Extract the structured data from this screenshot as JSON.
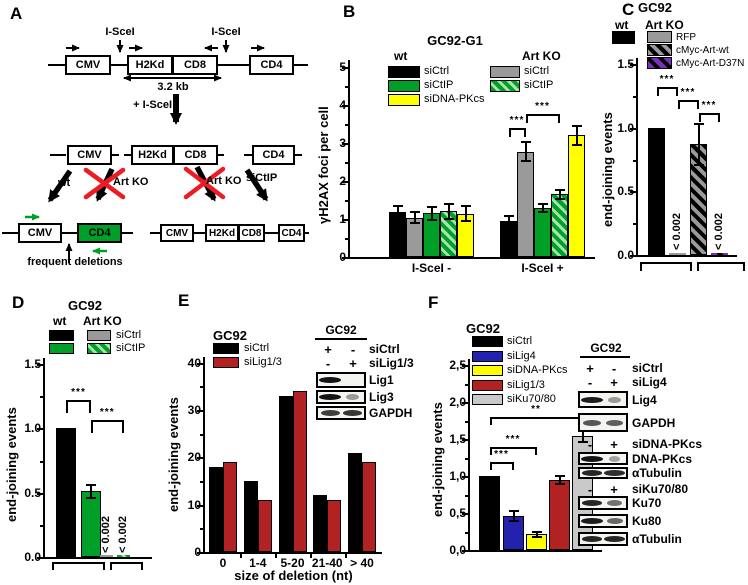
{
  "colors": {
    "black": "#000000",
    "gray": "#9A9A9A",
    "light_gray": "#C9C9C9",
    "green": "#00A028",
    "green_stripe": "#A6E4AE",
    "yellow": "#FFFF00",
    "red": "#B22222",
    "blue": "#2222AE",
    "purple": "#7B2FBE",
    "red_x": "#ED1C24"
  },
  "panels": {
    "a_label": "A",
    "b_label": "B",
    "c_label": "C",
    "d_label": "D",
    "e_label": "E",
    "f_label": "F"
  },
  "panel_a": {
    "isce_site_left": "I-SceI",
    "isce_site_right": "I-SceI",
    "row1_boxes": [
      "CMV",
      "H2Kd",
      "CD8",
      "CD4"
    ],
    "span_label": "3.2 kb",
    "cut_label": "+ I-SceI",
    "row2_boxes": [
      "CMV",
      "H2Kd",
      "CD8",
      "CD4"
    ],
    "wt_label": "wt",
    "artko_left_label": "Art KO",
    "artko_right_label": "Art KO",
    "sictip_label": "siCtIP",
    "left_product_boxes": [
      "CMV",
      "CD4"
    ],
    "right_product_boxes": [
      "CMV",
      "H2Kd",
      "CD8",
      "CD4"
    ],
    "deletions_label": "frequent deletions"
  },
  "chart_data": [
    {
      "id": "panel_b",
      "type": "bar",
      "title": "GC92-G1",
      "ylabel": "γH2AX foci per cell",
      "ylim": [
        0,
        5
      ],
      "yticks": [
        "0",
        "1",
        "2",
        "3",
        "4",
        "5"
      ],
      "categories": [
        "I-SceI -",
        "I-SceI +"
      ],
      "series": [
        {
          "name": "wt siCtrl",
          "fill": "black",
          "values": [
            1.18,
            0.95
          ],
          "errors": [
            0.2,
            0.15
          ]
        },
        {
          "name": "Art KO siCtrl",
          "fill": "gray",
          "values": [
            1.03,
            2.77
          ],
          "errors": [
            0.17,
            0.28
          ]
        },
        {
          "name": "wt siCtIP",
          "fill": "green",
          "values": [
            1.15,
            1.3
          ],
          "errors": [
            0.2,
            0.13
          ]
        },
        {
          "name": "Art KO siCtIP",
          "fill": "green-hatch",
          "values": [
            1.2,
            1.65
          ],
          "errors": [
            0.22,
            0.15
          ]
        },
        {
          "name": "wt siDNA-PKcs",
          "fill": "yellow",
          "values": [
            1.14,
            3.2
          ],
          "errors": [
            0.22,
            0.28
          ]
        }
      ],
      "legend_groups": [
        {
          "title": "wt",
          "items": [
            {
              "label": "siCtrl",
              "fill": "black"
            },
            {
              "label": "siCtIP",
              "fill": "green"
            },
            {
              "label": "siDNA-PKcs",
              "fill": "yellow"
            }
          ]
        },
        {
          "title": "Art KO",
          "items": [
            {
              "label": "siCtrl",
              "fill": "gray"
            },
            {
              "label": "siCtIP",
              "fill": "green-hatch"
            }
          ]
        }
      ],
      "significance": [
        {
          "group": 1,
          "from": 0,
          "to": 1,
          "label": "***"
        },
        {
          "group": 1,
          "from": 1,
          "to": 3,
          "label": "***"
        }
      ]
    },
    {
      "id": "panel_c",
      "type": "bar",
      "title": "GC92",
      "ylabel": "end-joining events",
      "ylim": [
        0,
        1.5
      ],
      "yticks": [
        "0.0",
        "0.5",
        "1.0",
        "1.5"
      ],
      "bars": [
        {
          "name": "wt",
          "fill": "black",
          "value": 1.0
        },
        {
          "name": "RFP",
          "fill": "gray",
          "value": 0.012,
          "note": "< 0.002"
        },
        {
          "name": "cMyc-Art-wt",
          "fill": "gray-hatch",
          "value": 0.87,
          "error": 0.17
        },
        {
          "name": "cMyc-Art-D37N",
          "fill": "purple-hatch",
          "value": 0.012,
          "note": "< 0.002"
        }
      ],
      "legend": {
        "wt_title": "wt",
        "artko_title": "Art KO",
        "wt_fill": "black",
        "items": [
          {
            "label": "RFP",
            "fill": "gray"
          },
          {
            "label": "cMyc-Art-wt",
            "fill": "gray-hatch"
          },
          {
            "label": "cMyc-Art-D37N",
            "fill": "purple-hatch"
          }
        ]
      },
      "significance": [
        {
          "from": 0,
          "to": 1,
          "label": "***"
        },
        {
          "from": 1,
          "to": 2,
          "label": "***"
        },
        {
          "from": 2,
          "to": 3,
          "label": "***"
        }
      ]
    },
    {
      "id": "panel_d",
      "type": "bar",
      "title": "GC92",
      "ylabel": "end-joining events",
      "ylim": [
        0,
        1.5
      ],
      "yticks": [
        "0.0",
        "0.5",
        "1.0",
        "1.5"
      ],
      "bars": [
        {
          "name": "wt siCtrl",
          "fill": "black",
          "value": 1.0
        },
        {
          "name": "wt siCtIP",
          "fill": "green",
          "value": 0.51,
          "error": 0.06
        },
        {
          "name": "Art KO siCtrl",
          "fill": "gray",
          "value": 0.008,
          "note": "< 0.002"
        },
        {
          "name": "Art KO siCtIP",
          "fill": "green-hatch",
          "value": 0.008,
          "note": "< 0.002"
        }
      ],
      "legend": {
        "wt_title": "wt",
        "artko_title": "Art KO",
        "rows": [
          {
            "label": "siCtrl",
            "wt_fill": "black",
            "artko_fill": "gray"
          },
          {
            "label": "siCtIP",
            "wt_fill": "green",
            "artko_fill": "green-hatch"
          }
        ]
      },
      "significance": [
        {
          "from": 0,
          "to": 1,
          "label": "***"
        },
        {
          "from": 1,
          "to": 3,
          "label": "***"
        }
      ]
    },
    {
      "id": "panel_e",
      "type": "bar",
      "title": "GC92",
      "ylabel": "end-joining events",
      "xlabel": "size of deletion (nt)",
      "ylim": [
        0,
        40
      ],
      "yticks": [
        "0",
        "10",
        "20",
        "30",
        "40"
      ],
      "categories": [
        "0",
        "1-4",
        "5-20",
        "21-40",
        "> 40"
      ],
      "series": [
        {
          "name": "siCtrl",
          "fill": "black",
          "values": [
            18,
            15,
            33,
            12,
            21
          ]
        },
        {
          "name": "siLig1/3",
          "fill": "red",
          "values": [
            19,
            11,
            34,
            11,
            19
          ]
        }
      ]
    },
    {
      "id": "panel_f",
      "type": "bar",
      "title": "GC92",
      "ylabel": "end-joining events",
      "ylim": [
        0,
        2.5
      ],
      "yticks": [
        "0,0",
        "0,5",
        "1,0",
        "1,5",
        "2,0",
        "2,5"
      ],
      "bars": [
        {
          "name": "siCtrl",
          "fill": "black",
          "value": 1.0
        },
        {
          "name": "siLig4",
          "fill": "blue",
          "value": 0.46,
          "error": 0.08
        },
        {
          "name": "siDNA-PKcs",
          "fill": "yellow",
          "value": 0.21,
          "error": 0.05
        },
        {
          "name": "siLig1/3",
          "fill": "red",
          "value": 0.95,
          "error": 0.07
        },
        {
          "name": "siKu70/80",
          "fill": "lightgray",
          "value": 1.54,
          "error": 0.09
        }
      ],
      "significance": [
        {
          "from": 0,
          "to": 1,
          "label": "***"
        },
        {
          "from": 0,
          "to": 2,
          "label": "***"
        },
        {
          "from": 0,
          "to": 4,
          "label": "**"
        }
      ]
    }
  ],
  "blots": {
    "e": {
      "title": "GC92",
      "rows": [
        {
          "signs": [
            "+",
            "-"
          ],
          "label": "siCtrl"
        },
        {
          "signs": [
            "-",
            "+"
          ],
          "label": "siLig1/3"
        }
      ],
      "bands": [
        {
          "label": "Lig1",
          "lanes": [
            1,
            0
          ]
        },
        {
          "label": "Lig3",
          "lanes": [
            1,
            0.2
          ]
        },
        {
          "label": "GAPDH",
          "lanes": [
            0.75,
            0.8
          ]
        }
      ]
    },
    "f": {
      "title": "GC92",
      "groups": [
        {
          "rows": [
            {
              "signs": [
                "+",
                "-"
              ],
              "label": "siCtrl"
            },
            {
              "signs": [
                "-",
                "+"
              ],
              "label": "siLig4"
            }
          ],
          "bands": [
            {
              "label": "Lig4",
              "lanes": [
                0.95,
                0.2
              ]
            },
            {
              "label": "GAPDH",
              "lanes": [
                0.6,
                0.55
              ]
            }
          ]
        },
        {
          "rows": [
            {
              "signs": [
                "-",
                "+"
              ],
              "label": "siDNA-PKcs"
            }
          ],
          "bands": [
            {
              "label": "DNA-PKcs",
              "lanes": [
                1,
                0.15
              ]
            },
            {
              "label": "αTubulin",
              "lanes": [
                0.9,
                0.85
              ]
            }
          ]
        },
        {
          "rows": [
            {
              "signs": [
                "-",
                "+"
              ],
              "label": "siKu70/80"
            }
          ],
          "bands": [
            {
              "label": "Ku70",
              "lanes": [
                0.9,
                0.45
              ]
            },
            {
              "label": "Ku80",
              "lanes": [
                0.95,
                0.5
              ]
            },
            {
              "label": "αTubulin",
              "lanes": [
                0.9,
                0.9
              ]
            }
          ]
        }
      ]
    }
  }
}
